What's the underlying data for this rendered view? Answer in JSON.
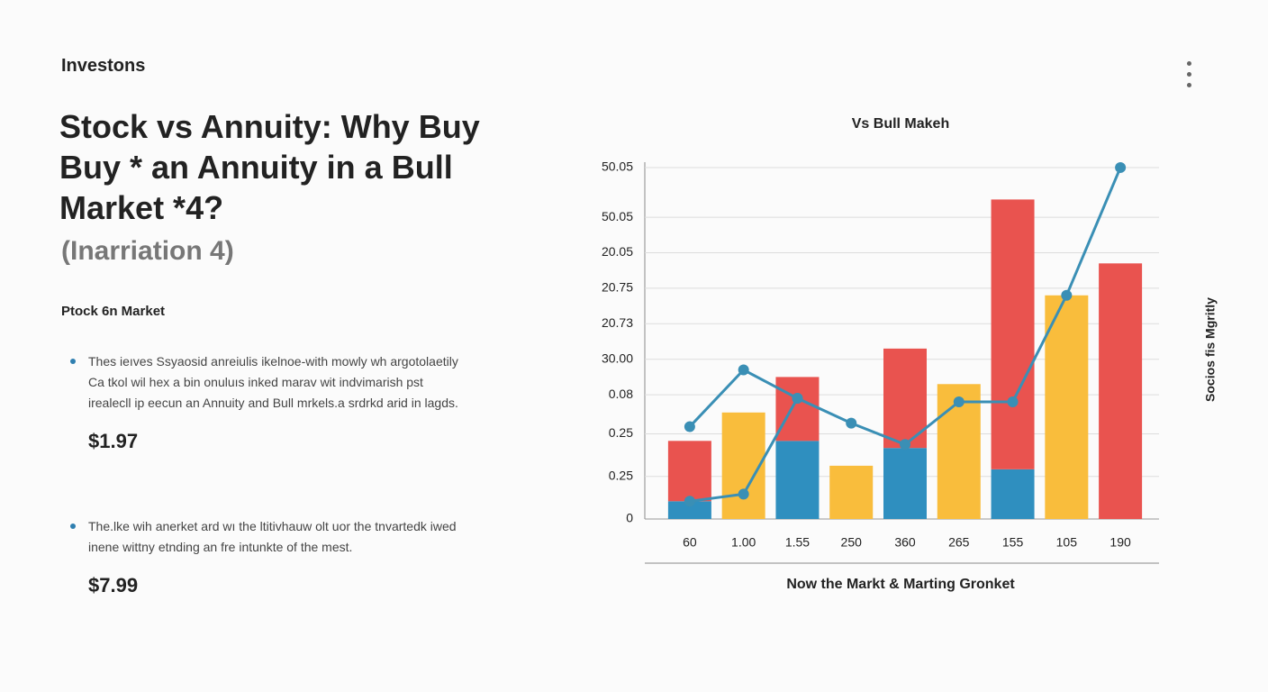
{
  "header": {
    "kicker": "Investons",
    "title": [
      "Stock vs Annuity: Why Buy",
      "Buy * an Annuity in a Bull",
      "Market *4?"
    ],
    "subtitle": "(Inarriation 4)"
  },
  "section": {
    "heading": "Ptock 6n Market",
    "items": [
      {
        "text": "Thes ieıves Ssyaosid anreiulis ikelnoe-with mowly wh argotolaetily Ca tkol wil hex a bin onuluıs inked marav wit indvimarish pst irealecll ip eecun an Annuity and Bull mrkels.a srdrkd arid in lagds.",
        "price": "$1.97"
      },
      {
        "text": "The.lke wih anerket ard wı the ltitivhauw olt uor the tnvartedk iwed inene wittny etnding an fre intunkte of the mest.",
        "price": "$7.99"
      }
    ]
  },
  "chart_data": {
    "type": "bar",
    "title": "Vs Bull Makeh",
    "x_label": "Now the Markt & Marting Gronket",
    "y_label": "Socios fis Mgritly",
    "categories": [
      "60",
      "1.00",
      "1.55",
      "250",
      "360",
      "265",
      "155",
      "105",
      "190"
    ],
    "stacked": true,
    "grid": true,
    "ylim": [
      0,
      100
    ],
    "yticks": [
      {
        "value": 99,
        "label": "50.05"
      },
      {
        "value": 85,
        "label": "50.05"
      },
      {
        "value": 75,
        "label": "20.05"
      },
      {
        "value": 65,
        "label": "20.75"
      },
      {
        "value": 55,
        "label": "20.73"
      },
      {
        "value": 45,
        "label": "30.00"
      },
      {
        "value": 35,
        "label": "0.08"
      },
      {
        "value": 24,
        "label": "0.25"
      },
      {
        "value": 12,
        "label": "0.25"
      },
      0
    ],
    "series": [
      {
        "type": "bar",
        "color": "#2f8fbf",
        "values": [
          5,
          null,
          22,
          null,
          20,
          null,
          14,
          null,
          null
        ]
      },
      {
        "type": "bar",
        "color": "#e9534f",
        "values": [
          17,
          null,
          18,
          null,
          28,
          null,
          76,
          null,
          72
        ]
      },
      {
        "type": "bar",
        "color": "#f9bd3c",
        "values": [
          null,
          30,
          null,
          15,
          null,
          38,
          null,
          63,
          null
        ]
      },
      {
        "type": "line",
        "color": "#3a8fb5",
        "values": [
          26,
          42,
          34,
          27,
          21,
          33,
          33,
          63,
          99
        ]
      },
      {
        "type": "line",
        "color": "#3a8fb5",
        "values": [
          5,
          7,
          34,
          null,
          null,
          null,
          null,
          null,
          null
        ]
      }
    ]
  }
}
